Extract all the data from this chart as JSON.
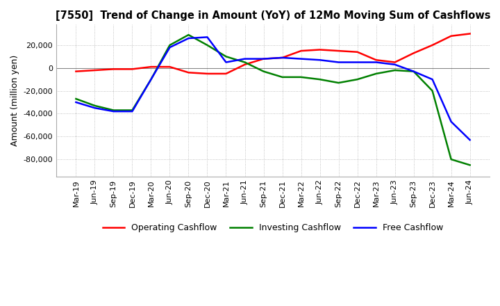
{
  "title": "[7550]  Trend of Change in Amount (YoY) of 12Mo Moving Sum of Cashflows",
  "ylabel": "Amount (million yen)",
  "background_color": "#ffffff",
  "grid_color": "#b0b0b0",
  "x_labels": [
    "Mar-19",
    "Jun-19",
    "Sep-19",
    "Dec-19",
    "Mar-20",
    "Jun-20",
    "Sep-20",
    "Dec-20",
    "Mar-21",
    "Jun-21",
    "Sep-21",
    "Dec-21",
    "Mar-22",
    "Jun-22",
    "Sep-22",
    "Dec-22",
    "Mar-23",
    "Jun-23",
    "Sep-23",
    "Dec-23",
    "Mar-24",
    "Jun-24"
  ],
  "operating_cashflow": [
    -3000,
    -2000,
    -1000,
    -1000,
    1000,
    1000,
    -4000,
    -5000,
    -5000,
    3000,
    8000,
    9000,
    15000,
    16000,
    15000,
    14000,
    7000,
    5000,
    13000,
    20000,
    28000,
    30000
  ],
  "investing_cashflow": [
    -27000,
    -33000,
    -37000,
    -37000,
    -10000,
    20000,
    29000,
    20000,
    10000,
    5000,
    -3000,
    -8000,
    -8000,
    -10000,
    -13000,
    -10000,
    -5000,
    -2000,
    -3000,
    -20000,
    -80000,
    -85000
  ],
  "free_cashflow": [
    -30000,
    -35000,
    -38000,
    -38000,
    -10000,
    18000,
    26000,
    27000,
    5000,
    8000,
    8000,
    9000,
    8000,
    7000,
    5000,
    5000,
    5000,
    3000,
    -3000,
    -10000,
    -47000,
    -63000
  ],
  "operating_color": "#ff0000",
  "investing_color": "#008000",
  "free_color": "#0000ff",
  "ylim": [
    -95000,
    38000
  ],
  "yticks": [
    20000,
    0,
    -20000,
    -40000,
    -60000,
    -80000
  ]
}
